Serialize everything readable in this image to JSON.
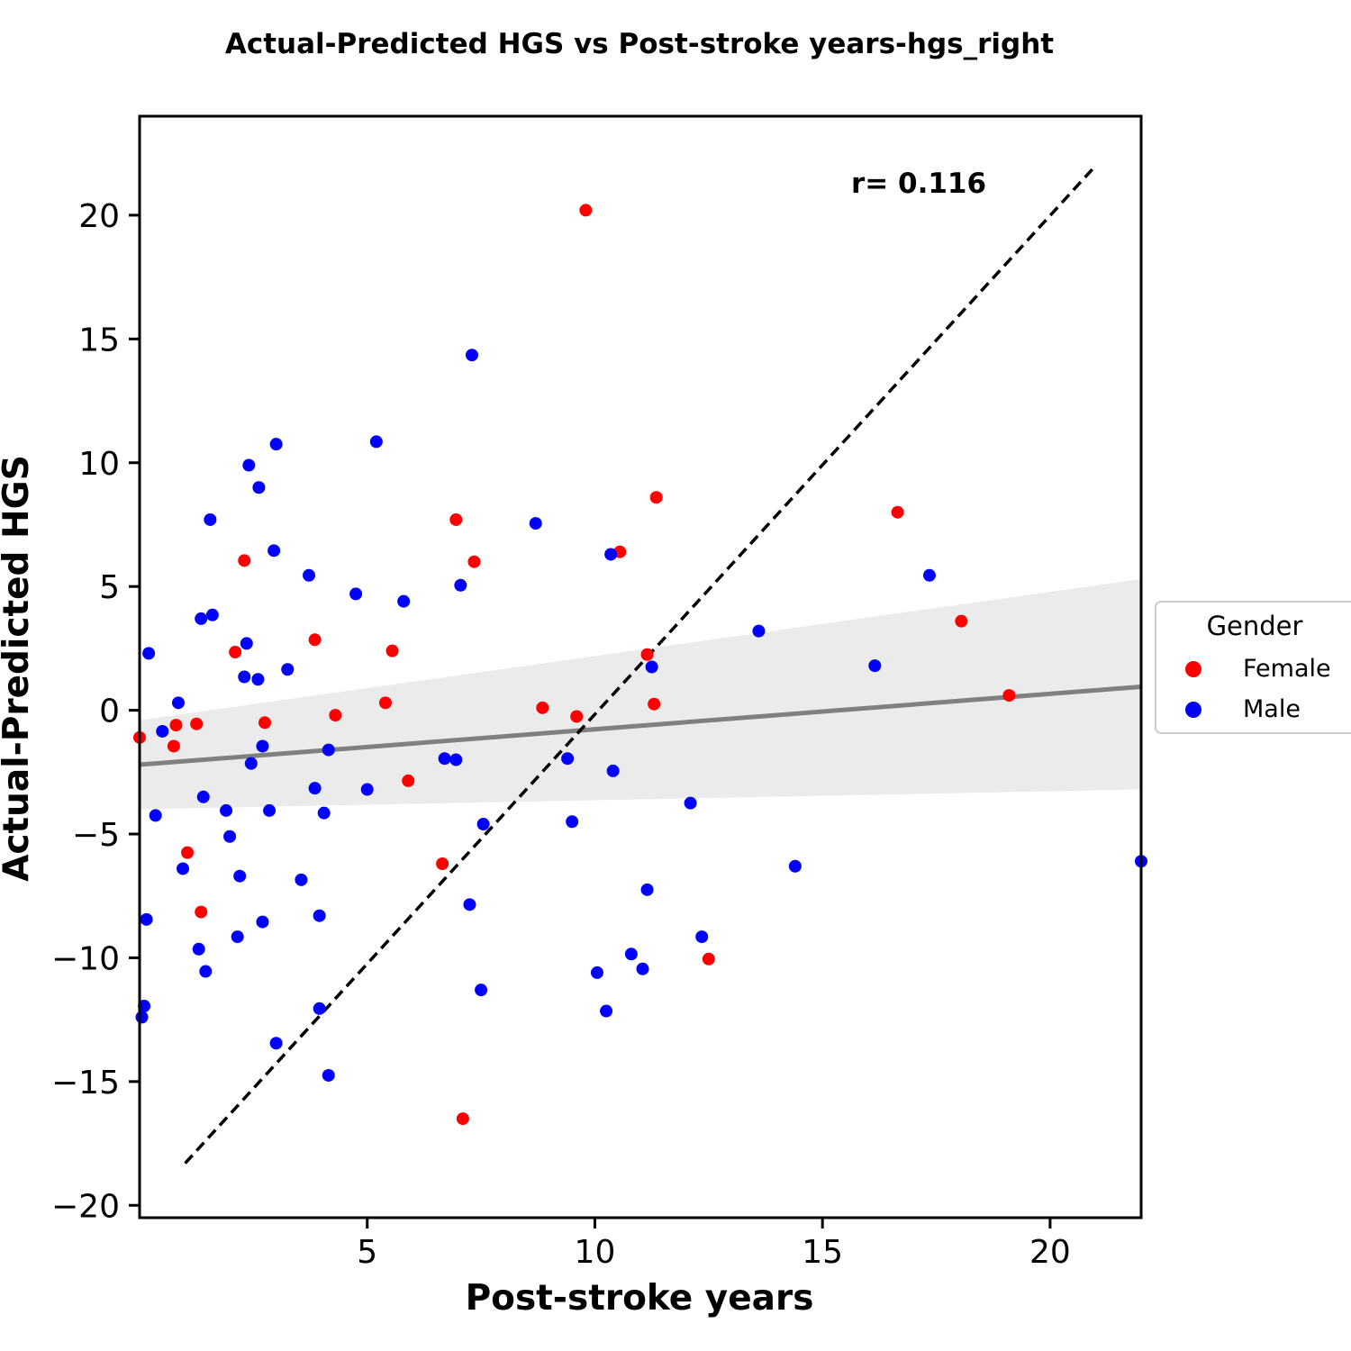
{
  "chart_data": {
    "type": "scatter",
    "title": "Actual-Predicted HGS vs Post-stroke years-hgs_right",
    "xlabel": "Post-stroke years",
    "ylabel": "Actual-Predicted HGS",
    "xlim": [
      0,
      22
    ],
    "ylim": [
      -20.5,
      24
    ],
    "xticks": [
      5,
      10,
      15,
      20
    ],
    "yticks": [
      -20,
      -15,
      -10,
      -5,
      0,
      5,
      10,
      15,
      20
    ],
    "xtick_labels": [
      "5",
      "10",
      "15",
      "20"
    ],
    "ytick_labels": [
      "−20",
      "−15",
      "−10",
      "−5",
      "0",
      "5",
      "10",
      "15",
      "20"
    ],
    "grid": false,
    "annotation": "r= 0.116",
    "legend": {
      "title": "Gender",
      "placement": "outside-right"
    },
    "identity_line": {
      "style": "dashed",
      "color": "#000000",
      "x": [
        1,
        21
      ],
      "y": [
        -18.3,
        22
      ]
    },
    "regression": {
      "color": "#808080",
      "x": [
        0,
        22
      ],
      "y": [
        -2.2,
        0.95
      ],
      "ci_lower": [
        -4.0,
        -3.2
      ],
      "ci_upper": [
        -0.4,
        5.3
      ],
      "ci_color": "#ebebeb"
    },
    "series": [
      {
        "name": "Female",
        "color": "#ff0000",
        "points": [
          [
            0.0,
            -1.1
          ],
          [
            0.8,
            -0.6
          ],
          [
            0.75,
            -1.45
          ],
          [
            1.25,
            -0.55
          ],
          [
            1.05,
            -5.75
          ],
          [
            1.35,
            -8.15
          ],
          [
            2.1,
            2.35
          ],
          [
            2.3,
            6.05
          ],
          [
            2.75,
            -0.5
          ],
          [
            3.85,
            2.85
          ],
          [
            4.3,
            -0.2
          ],
          [
            5.4,
            0.3
          ],
          [
            5.55,
            2.4
          ],
          [
            5.9,
            -2.85
          ],
          [
            6.65,
            -6.2
          ],
          [
            6.95,
            7.7
          ],
          [
            7.35,
            6.0
          ],
          [
            7.1,
            -16.5
          ],
          [
            8.85,
            0.1
          ],
          [
            9.6,
            -0.25
          ],
          [
            9.8,
            20.2
          ],
          [
            10.55,
            6.4
          ],
          [
            11.15,
            2.25
          ],
          [
            11.3,
            0.25
          ],
          [
            11.35,
            8.6
          ],
          [
            12.5,
            -10.05
          ],
          [
            16.65,
            8.0
          ],
          [
            18.05,
            3.6
          ],
          [
            19.1,
            0.6
          ]
        ]
      },
      {
        "name": "Male",
        "color": "#0000ff",
        "points": [
          [
            0.05,
            -12.4
          ],
          [
            0.1,
            -11.95
          ],
          [
            0.15,
            -8.45
          ],
          [
            0.2,
            2.3
          ],
          [
            0.35,
            -4.25
          ],
          [
            0.5,
            -0.85
          ],
          [
            0.85,
            0.3
          ],
          [
            0.95,
            -6.4
          ],
          [
            1.3,
            -9.65
          ],
          [
            1.35,
            3.7
          ],
          [
            1.4,
            -3.5
          ],
          [
            1.45,
            -10.55
          ],
          [
            1.55,
            7.7
          ],
          [
            1.6,
            3.85
          ],
          [
            1.9,
            -4.05
          ],
          [
            1.98,
            -5.1
          ],
          [
            2.15,
            -9.15
          ],
          [
            2.2,
            -6.7
          ],
          [
            2.3,
            1.35
          ],
          [
            2.35,
            2.7
          ],
          [
            2.4,
            9.9
          ],
          [
            2.45,
            -2.15
          ],
          [
            2.6,
            1.25
          ],
          [
            2.62,
            9.0
          ],
          [
            2.7,
            -1.45
          ],
          [
            2.7,
            -8.55
          ],
          [
            2.85,
            -4.05
          ],
          [
            2.95,
            6.45
          ],
          [
            3.0,
            10.75
          ],
          [
            3.0,
            -13.45
          ],
          [
            3.25,
            1.65
          ],
          [
            3.55,
            -6.85
          ],
          [
            3.72,
            5.45
          ],
          [
            3.85,
            -3.15
          ],
          [
            3.95,
            -8.3
          ],
          [
            3.95,
            -12.05
          ],
          [
            4.05,
            -4.15
          ],
          [
            4.15,
            -1.6
          ],
          [
            4.15,
            -14.75
          ],
          [
            4.75,
            4.7
          ],
          [
            5.0,
            -3.2
          ],
          [
            5.2,
            10.85
          ],
          [
            5.8,
            4.4
          ],
          [
            6.7,
            -1.95
          ],
          [
            6.95,
            -2.0
          ],
          [
            7.05,
            5.05
          ],
          [
            7.25,
            -7.85
          ],
          [
            7.3,
            14.35
          ],
          [
            7.5,
            -11.3
          ],
          [
            7.55,
            -4.6
          ],
          [
            8.7,
            7.55
          ],
          [
            9.4,
            -1.95
          ],
          [
            9.5,
            -4.5
          ],
          [
            10.05,
            -10.6
          ],
          [
            10.25,
            -12.15
          ],
          [
            10.35,
            6.3
          ],
          [
            10.4,
            -2.45
          ],
          [
            10.8,
            -9.85
          ],
          [
            11.05,
            -10.45
          ],
          [
            11.15,
            -7.25
          ],
          [
            11.25,
            1.75
          ],
          [
            12.1,
            -3.75
          ],
          [
            12.35,
            -9.15
          ],
          [
            13.6,
            3.2
          ],
          [
            14.4,
            -6.3
          ],
          [
            16.15,
            1.8
          ],
          [
            17.35,
            5.45
          ],
          [
            22.0,
            -6.1
          ]
        ]
      }
    ]
  }
}
